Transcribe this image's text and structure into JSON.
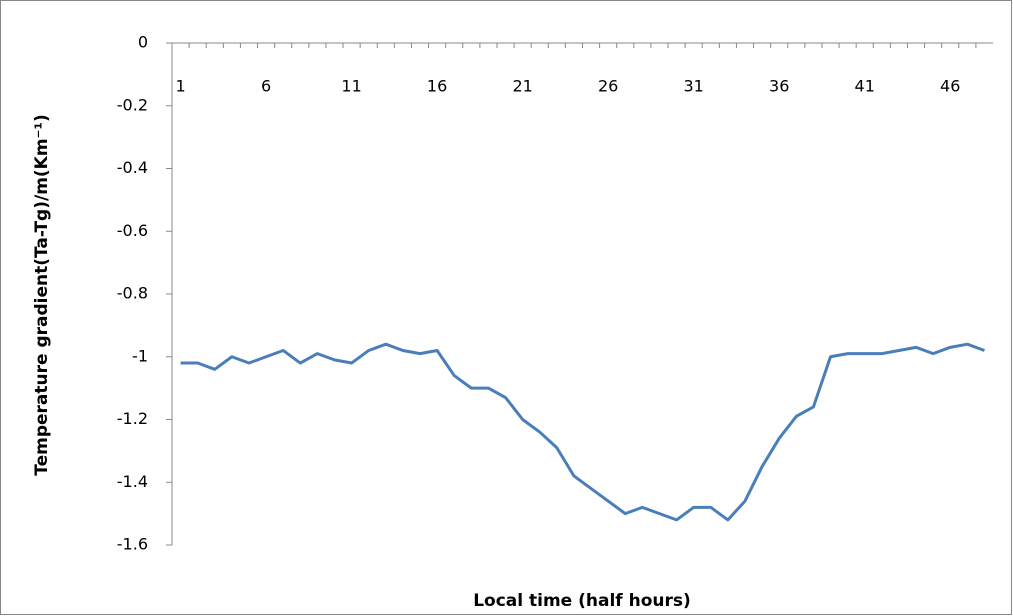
{
  "chart_data": {
    "type": "line",
    "y_label": "Temperature gradient(Ta-Tg)/m(Km⁻¹)",
    "x_label": "Local time (half hours)",
    "categories": [
      "1",
      null,
      null,
      null,
      null,
      "6",
      null,
      null,
      null,
      null,
      "11",
      null,
      null,
      null,
      null,
      "16",
      null,
      null,
      null,
      null,
      "21",
      null,
      null,
      null,
      null,
      "26",
      null,
      null,
      null,
      null,
      "31",
      null,
      null,
      null,
      null,
      "36",
      null,
      null,
      null,
      null,
      "41",
      null,
      null,
      null,
      null,
      "46",
      null,
      null
    ],
    "series": [
      {
        "color": "#4a7ebb",
        "values": [
          -1.02,
          -1.02,
          -1.04,
          -1.0,
          -1.02,
          -1.0,
          -0.98,
          -1.02,
          -0.99,
          -1.01,
          -1.02,
          -0.98,
          -0.96,
          -0.98,
          -0.99,
          -0.98,
          -1.06,
          -1.1,
          -1.1,
          -1.13,
          -1.2,
          -1.24,
          -1.29,
          -1.38,
          -1.42,
          -1.46,
          -1.5,
          -1.48,
          -1.5,
          -1.52,
          -1.48,
          -1.48,
          -1.52,
          -1.46,
          -1.35,
          -1.26,
          -1.19,
          -1.16,
          -1.0,
          -0.99,
          -0.99,
          -0.99,
          -0.98,
          -0.97,
          -0.99,
          -0.97,
          -0.96,
          -0.98
        ]
      }
    ],
    "ylim": [
      -1.6,
      0
    ],
    "yticks": [
      0,
      -0.2,
      -0.4,
      -0.6,
      -0.8,
      -1,
      -1.2,
      -1.4,
      -1.6
    ],
    "grid": false
  }
}
